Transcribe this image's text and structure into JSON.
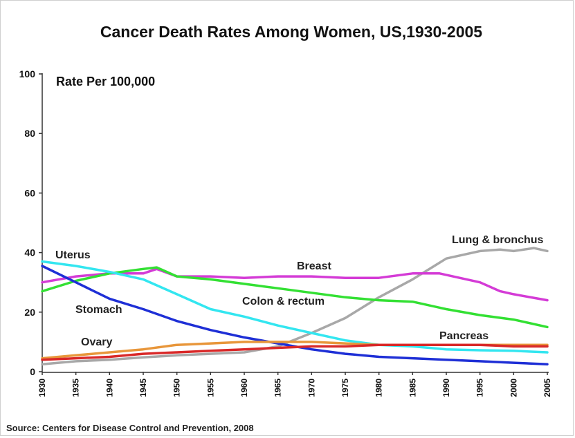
{
  "chart_data": {
    "type": "line",
    "title": "Cancer Death Rates Among Women, US,1930-2005",
    "ylabel": "Rate Per 100,000",
    "source": "Source: Centers for Disease Control and Prevention, 2008",
    "ylim": [
      0,
      100
    ],
    "xlim": [
      1930,
      2005
    ],
    "yticks": [
      "0",
      "20",
      "40",
      "60",
      "80",
      "100"
    ],
    "xticks": [
      "1930",
      "1935",
      "1940",
      "1945",
      "1950",
      "1955",
      "1960",
      "1965",
      "1970",
      "1975",
      "1980",
      "1985",
      "1990",
      "1995",
      "2000",
      "2005"
    ],
    "grid": false,
    "series": [
      {
        "name": "Lung & bronchus",
        "color": "#a8a8a8",
        "x": [
          1930,
          1935,
          1940,
          1945,
          1950,
          1955,
          1960,
          1965,
          1970,
          1975,
          1980,
          1985,
          1990,
          1995,
          1998,
          2000,
          2003,
          2005
        ],
        "y": [
          2.5,
          3.5,
          4,
          4.8,
          5.5,
          6,
          6.5,
          8.5,
          13,
          18,
          25,
          31,
          38,
          40.5,
          41,
          40.5,
          41.5,
          40.5
        ]
      },
      {
        "name": "Breast",
        "color": "#d43bd6",
        "x": [
          1930,
          1935,
          1940,
          1945,
          1947,
          1950,
          1955,
          1960,
          1965,
          1970,
          1975,
          1980,
          1985,
          1989,
          1995,
          1998,
          2000,
          2005
        ],
        "y": [
          30,
          32,
          33,
          33,
          34.5,
          32,
          32,
          31.5,
          32,
          32,
          31.5,
          31.5,
          33,
          33,
          30,
          27,
          26,
          24
        ]
      },
      {
        "name": "Colon & rectum",
        "color": "#33e033",
        "x": [
          1930,
          1935,
          1940,
          1945,
          1947,
          1950,
          1955,
          1960,
          1965,
          1970,
          1975,
          1980,
          1985,
          1990,
          1995,
          2000,
          2005
        ],
        "y": [
          27,
          30.5,
          33,
          34.5,
          35,
          32,
          31,
          29.5,
          28,
          26.5,
          25,
          24,
          23.5,
          21,
          19,
          17.5,
          15
        ]
      },
      {
        "name": "Uterus",
        "color": "#33e6f0",
        "x": [
          1930,
          1935,
          1940,
          1945,
          1950,
          1955,
          1960,
          1965,
          1970,
          1975,
          1980,
          1985,
          1990,
          1995,
          2000,
          2005
        ],
        "y": [
          37,
          35.5,
          33.5,
          31,
          26,
          21,
          18.5,
          15.5,
          13,
          10.5,
          9,
          8.5,
          7.5,
          7.2,
          7,
          6.5
        ]
      },
      {
        "name": "Stomach",
        "color": "#1e2fd6",
        "x": [
          1930,
          1935,
          1940,
          1945,
          1950,
          1955,
          1960,
          1965,
          1970,
          1975,
          1980,
          1985,
          1990,
          1995,
          2000,
          2005
        ],
        "y": [
          35.5,
          30,
          24.5,
          21,
          17,
          14,
          11.5,
          9.5,
          7.5,
          6,
          5,
          4.5,
          4,
          3.5,
          3,
          2.5
        ]
      },
      {
        "name": "Ovary",
        "color": "#e8963a",
        "x": [
          1930,
          1935,
          1940,
          1945,
          1950,
          1955,
          1960,
          1965,
          1970,
          1975,
          1980,
          1985,
          1990,
          1995,
          2000,
          2005
        ],
        "y": [
          4.5,
          5.5,
          6.5,
          7.5,
          9,
          9.5,
          10,
          10,
          10,
          9.5,
          9,
          9,
          9,
          9,
          9,
          9
        ]
      },
      {
        "name": "Pancreas",
        "color": "#d92828",
        "x": [
          1930,
          1935,
          1940,
          1945,
          1950,
          1955,
          1960,
          1965,
          1970,
          1975,
          1980,
          1985,
          1990,
          1995,
          2000,
          2005
        ],
        "y": [
          4,
          4.5,
          5,
          6,
          6.5,
          7,
          7.5,
          8,
          8.5,
          8.5,
          9,
          9,
          9,
          9,
          8.5,
          8.5
        ]
      }
    ]
  }
}
